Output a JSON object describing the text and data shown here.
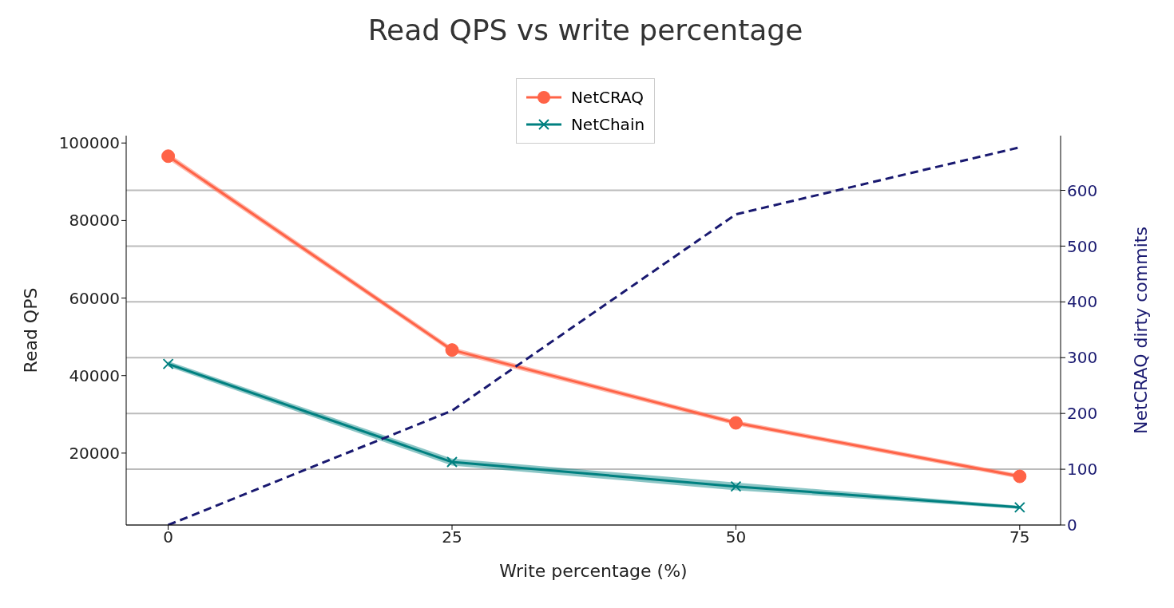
{
  "chart_data": {
    "type": "line",
    "title": "Read QPS vs write percentage",
    "xlabel": "Write percentage (%)",
    "ylabel": "Read QPS",
    "y2label": "NetCRAQ dirty commits",
    "x": [
      0,
      25,
      50,
      75
    ],
    "series": [
      {
        "name": "NetCRAQ",
        "color": "#ff6347",
        "values": [
          96600,
          46600,
          27800,
          14000
        ],
        "lower": [
          95800,
          45900,
          27200,
          13400
        ],
        "upper": [
          97400,
          47300,
          28400,
          14600
        ],
        "marker": "circle"
      },
      {
        "name": "NetChain",
        "color": "#008080",
        "values": [
          43000,
          17700,
          11400,
          6000
        ],
        "lower": [
          42300,
          16800,
          10400,
          5600
        ],
        "upper": [
          43700,
          18600,
          12400,
          6400
        ],
        "marker": "cross"
      },
      {
        "color": "#191970",
        "values": [
          0,
          205,
          557,
          677
        ],
        "axis": "y2",
        "line_style": "dashed",
        "marker": "none"
      }
    ],
    "xlim": [
      -3.7,
      78.6
    ],
    "xticks": [
      0,
      25,
      50,
      75
    ],
    "ylim": [
      1450,
      101900
    ],
    "yticks": [
      20000,
      40000,
      60000,
      80000,
      100000
    ],
    "y2lim": [
      0,
      698
    ],
    "y2ticks": [
      0,
      100,
      200,
      300,
      400,
      500,
      600
    ],
    "grid": "y2",
    "legend": "top"
  }
}
